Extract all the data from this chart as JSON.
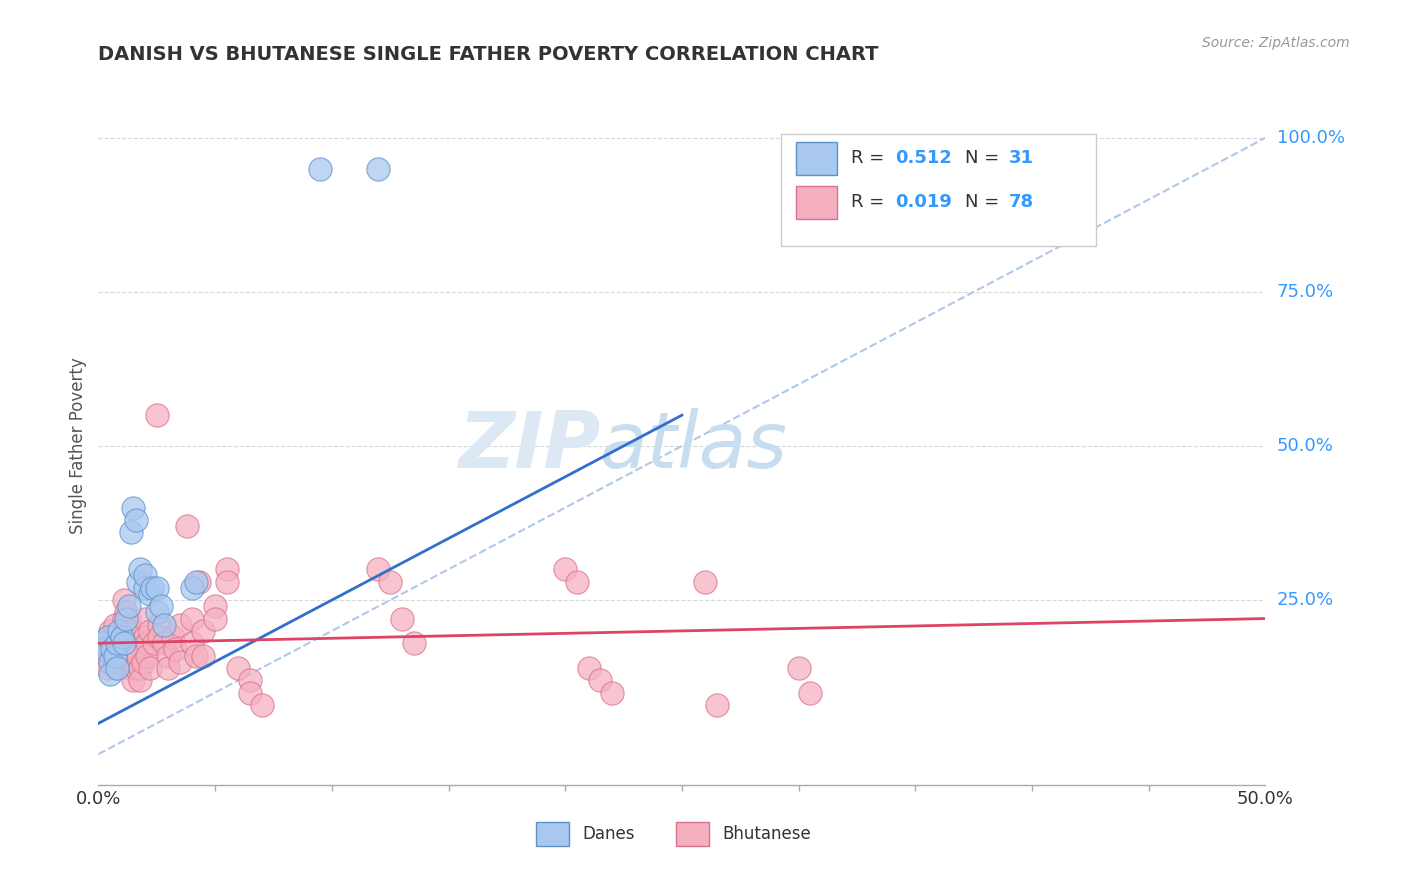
{
  "title": "DANISH VS BHUTANESE SINGLE FATHER POVERTY CORRELATION CHART",
  "source_text": "Source: ZipAtlas.com",
  "ylabel": "Single Father Poverty",
  "xlim": [
    0.0,
    0.5
  ],
  "ylim": [
    -0.05,
    1.05
  ],
  "ytick_labels": [
    "25.0%",
    "50.0%",
    "75.0%",
    "100.0%"
  ],
  "ytick_vals": [
    0.25,
    0.5,
    0.75,
    1.0
  ],
  "background_color": "#ffffff",
  "grid_color": "#d8d8d8",
  "danes_color": "#a8c8f0",
  "bhutanese_color": "#f5b0c0",
  "danes_edge_color": "#6090c8",
  "bhutanese_edge_color": "#d87090",
  "blue_line_color": "#3070cc",
  "pink_line_color": "#dd4466",
  "diag_line_color": "#b0c8e8",
  "danes_scatter": [
    [
      0.002,
      0.18
    ],
    [
      0.003,
      0.17
    ],
    [
      0.004,
      0.19
    ],
    [
      0.005,
      0.15
    ],
    [
      0.005,
      0.13
    ],
    [
      0.006,
      0.17
    ],
    [
      0.007,
      0.16
    ],
    [
      0.008,
      0.14
    ],
    [
      0.008,
      0.18
    ],
    [
      0.009,
      0.2
    ],
    [
      0.01,
      0.19
    ],
    [
      0.011,
      0.18
    ],
    [
      0.012,
      0.22
    ],
    [
      0.013,
      0.24
    ],
    [
      0.014,
      0.36
    ],
    [
      0.015,
      0.4
    ],
    [
      0.016,
      0.38
    ],
    [
      0.017,
      0.28
    ],
    [
      0.018,
      0.3
    ],
    [
      0.02,
      0.27
    ],
    [
      0.02,
      0.29
    ],
    [
      0.022,
      0.26
    ],
    [
      0.023,
      0.27
    ],
    [
      0.025,
      0.23
    ],
    [
      0.025,
      0.27
    ],
    [
      0.027,
      0.24
    ],
    [
      0.028,
      0.21
    ],
    [
      0.04,
      0.27
    ],
    [
      0.042,
      0.28
    ],
    [
      0.095,
      0.95
    ],
    [
      0.12,
      0.95
    ]
  ],
  "bhutanese_scatter": [
    [
      0.002,
      0.17
    ],
    [
      0.003,
      0.16
    ],
    [
      0.003,
      0.15
    ],
    [
      0.004,
      0.18
    ],
    [
      0.004,
      0.14
    ],
    [
      0.005,
      0.17
    ],
    [
      0.005,
      0.2
    ],
    [
      0.006,
      0.16
    ],
    [
      0.006,
      0.19
    ],
    [
      0.007,
      0.15
    ],
    [
      0.007,
      0.21
    ],
    [
      0.008,
      0.17
    ],
    [
      0.008,
      0.14
    ],
    [
      0.009,
      0.16
    ],
    [
      0.009,
      0.18
    ],
    [
      0.01,
      0.15
    ],
    [
      0.01,
      0.17
    ],
    [
      0.011,
      0.22
    ],
    [
      0.011,
      0.25
    ],
    [
      0.012,
      0.19
    ],
    [
      0.012,
      0.23
    ],
    [
      0.013,
      0.22
    ],
    [
      0.013,
      0.14
    ],
    [
      0.014,
      0.2
    ],
    [
      0.014,
      0.17
    ],
    [
      0.015,
      0.15
    ],
    [
      0.015,
      0.12
    ],
    [
      0.016,
      0.17
    ],
    [
      0.016,
      0.14
    ],
    [
      0.017,
      0.16
    ],
    [
      0.018,
      0.14
    ],
    [
      0.018,
      0.12
    ],
    [
      0.019,
      0.15
    ],
    [
      0.02,
      0.22
    ],
    [
      0.02,
      0.19
    ],
    [
      0.021,
      0.18
    ],
    [
      0.021,
      0.16
    ],
    [
      0.022,
      0.2
    ],
    [
      0.022,
      0.14
    ],
    [
      0.024,
      0.18
    ],
    [
      0.025,
      0.55
    ],
    [
      0.026,
      0.21
    ],
    [
      0.026,
      0.19
    ],
    [
      0.028,
      0.18
    ],
    [
      0.03,
      0.16
    ],
    [
      0.03,
      0.14
    ],
    [
      0.032,
      0.19
    ],
    [
      0.033,
      0.17
    ],
    [
      0.035,
      0.21
    ],
    [
      0.035,
      0.15
    ],
    [
      0.038,
      0.37
    ],
    [
      0.04,
      0.22
    ],
    [
      0.04,
      0.18
    ],
    [
      0.042,
      0.16
    ],
    [
      0.043,
      0.28
    ],
    [
      0.045,
      0.2
    ],
    [
      0.045,
      0.16
    ],
    [
      0.05,
      0.24
    ],
    [
      0.05,
      0.22
    ],
    [
      0.055,
      0.3
    ],
    [
      0.055,
      0.28
    ],
    [
      0.06,
      0.14
    ],
    [
      0.065,
      0.12
    ],
    [
      0.065,
      0.1
    ],
    [
      0.07,
      0.08
    ],
    [
      0.12,
      0.3
    ],
    [
      0.125,
      0.28
    ],
    [
      0.13,
      0.22
    ],
    [
      0.135,
      0.18
    ],
    [
      0.2,
      0.3
    ],
    [
      0.205,
      0.28
    ],
    [
      0.21,
      0.14
    ],
    [
      0.215,
      0.12
    ],
    [
      0.22,
      0.1
    ],
    [
      0.26,
      0.28
    ],
    [
      0.265,
      0.08
    ],
    [
      0.3,
      0.14
    ],
    [
      0.305,
      0.1
    ]
  ],
  "danes_line_x": [
    0.0,
    0.25
  ],
  "danes_line_y": [
    0.05,
    0.55
  ],
  "bhutanese_line_x": [
    0.0,
    0.5
  ],
  "bhutanese_line_y": [
    0.18,
    0.22
  ],
  "diag_line_x": [
    0.0,
    0.5
  ],
  "diag_line_y": [
    0.0,
    1.0
  ]
}
